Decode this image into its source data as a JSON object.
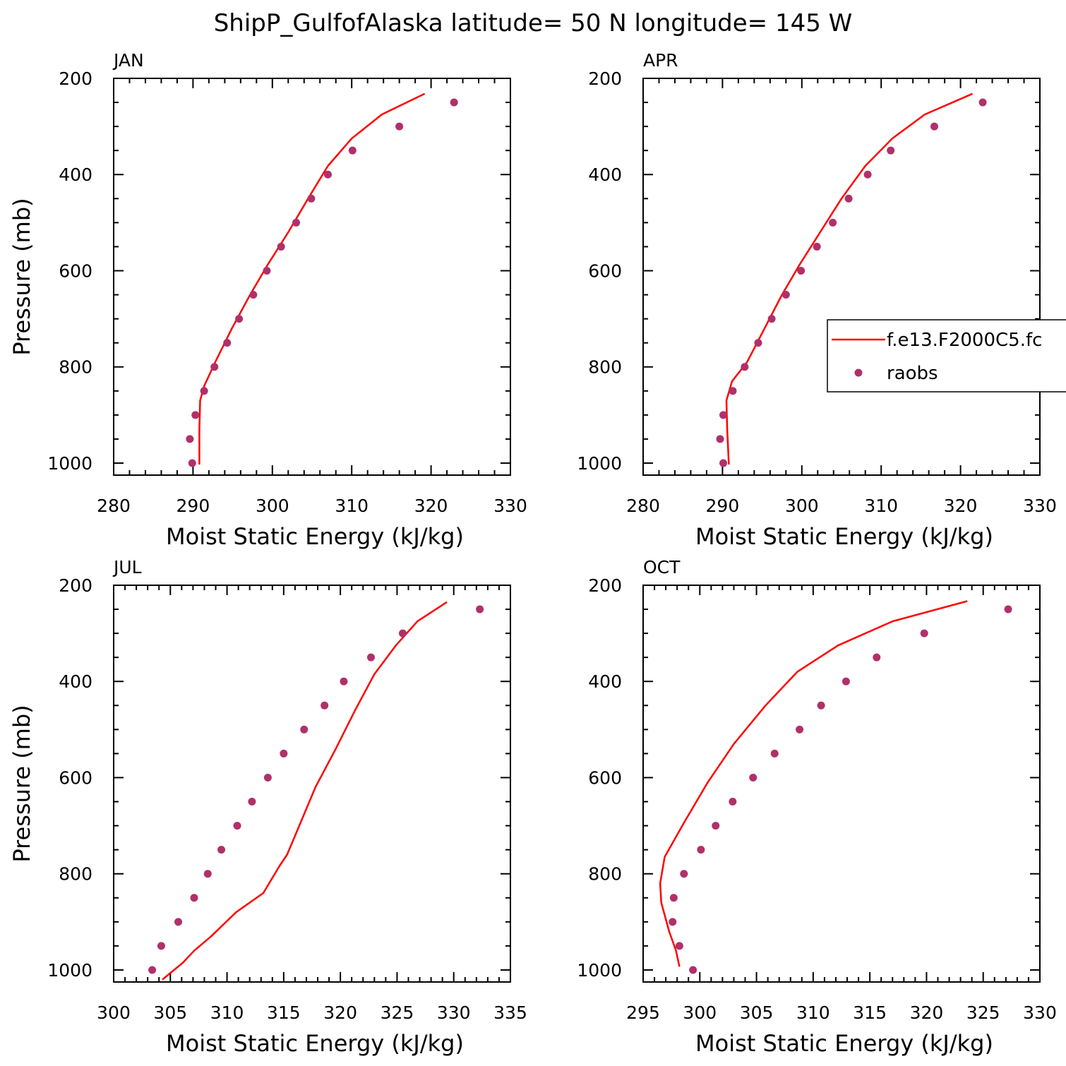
{
  "title": "ShipP_GulfofAlaska  latitude= 50 N longitude= 145 W",
  "colors": {
    "model": "#ff0000",
    "obs": "#b0306a",
    "axis": "#000000"
  },
  "legend": {
    "items": [
      {
        "label": "f.e13.F2000C5.fc",
        "kind": "line"
      },
      {
        "label": "raobs",
        "kind": "marker"
      }
    ]
  },
  "chart_data": [
    {
      "type": "line",
      "panel": "JAN",
      "xlabel": "Moist Static Energy (kJ/kg)",
      "ylabel": "Pressure (mb)",
      "xlim": [
        280,
        330
      ],
      "ylim": [
        1025,
        200
      ],
      "xticks": [
        280,
        290,
        300,
        310,
        320,
        330
      ],
      "yticks": [
        200,
        400,
        600,
        800,
        1000
      ],
      "series": [
        {
          "kind": "line",
          "x": [
            319.2,
            313.8,
            310.0,
            307.0,
            304.5,
            302.0,
            299.5,
            297.2,
            294.9,
            292.8,
            291.4,
            290.9,
            290.8,
            290.8
          ],
          "y": [
            232,
            275,
            325,
            382,
            450,
            520,
            585,
            650,
            720,
            790,
            840,
            870,
            930,
            1003
          ]
        },
        {
          "kind": "scatter",
          "x": [
            322.9,
            316.0,
            310.1,
            307.0,
            304.9,
            303.0,
            301.1,
            299.3,
            297.6,
            295.8,
            294.3,
            292.7,
            291.4,
            290.3,
            289.6,
            289.9
          ],
          "y": [
            250,
            300,
            350,
            400,
            450,
            500,
            550,
            600,
            650,
            700,
            750,
            800,
            850,
            900,
            950,
            1000
          ]
        }
      ]
    },
    {
      "type": "line",
      "panel": "APR",
      "xlabel": "Moist Static Energy (kJ/kg)",
      "ylabel": "",
      "xlim": [
        280,
        330
      ],
      "ylim": [
        1025,
        200
      ],
      "xticks": [
        280,
        290,
        300,
        310,
        320,
        330
      ],
      "yticks": [
        200,
        400,
        600,
        800,
        1000
      ],
      "series": [
        {
          "kind": "line",
          "x": [
            321.5,
            315.5,
            311.4,
            308.0,
            305.0,
            302.3,
            299.8,
            297.5,
            295.3,
            293.1,
            291.2,
            290.5,
            290.6,
            290.8
          ],
          "y": [
            232,
            275,
            325,
            382,
            450,
            520,
            585,
            650,
            720,
            790,
            830,
            870,
            930,
            1003
          ]
        },
        {
          "kind": "scatter",
          "x": [
            322.8,
            316.7,
            311.2,
            308.3,
            305.9,
            303.9,
            301.9,
            299.9,
            298.0,
            296.2,
            294.5,
            292.8,
            291.3,
            290.1,
            289.7,
            290.1
          ],
          "y": [
            250,
            300,
            350,
            400,
            450,
            500,
            550,
            600,
            650,
            700,
            750,
            800,
            850,
            900,
            950,
            1000
          ]
        }
      ]
    },
    {
      "type": "line",
      "panel": "JUL",
      "xlabel": "Moist Static Energy (kJ/kg)",
      "ylabel": "Pressure (mb)",
      "xlim": [
        300,
        335
      ],
      "ylim": [
        1025,
        200
      ],
      "xticks": [
        300,
        305,
        310,
        315,
        320,
        325,
        330,
        335
      ],
      "yticks": [
        200,
        400,
        600,
        800,
        1000
      ],
      "series": [
        {
          "kind": "line",
          "x": [
            329.4,
            326.8,
            324.9,
            323.0,
            321.3,
            319.6,
            317.8,
            316.2,
            315.3,
            314.6,
            313.2,
            310.8,
            308.6,
            307.1,
            306.1,
            304.3
          ],
          "y": [
            235,
            275,
            325,
            385,
            460,
            540,
            620,
            710,
            760,
            785,
            840,
            880,
            930,
            960,
            985,
            1020
          ]
        },
        {
          "kind": "scatter",
          "x": [
            332.3,
            325.5,
            322.7,
            320.3,
            318.6,
            316.8,
            315.0,
            313.6,
            312.2,
            310.9,
            309.5,
            308.3,
            307.1,
            305.7,
            304.2,
            303.4
          ],
          "y": [
            250,
            300,
            350,
            400,
            450,
            500,
            550,
            600,
            650,
            700,
            750,
            800,
            850,
            900,
            950,
            1000
          ]
        }
      ]
    },
    {
      "type": "line",
      "panel": "OCT",
      "xlabel": "Moist Static Energy (kJ/kg)",
      "ylabel": "",
      "xlim": [
        295,
        330
      ],
      "ylim": [
        1025,
        200
      ],
      "xticks": [
        295,
        300,
        305,
        310,
        315,
        320,
        325,
        330
      ],
      "yticks": [
        200,
        400,
        600,
        800,
        1000
      ],
      "series": [
        {
          "kind": "line",
          "x": [
            323.6,
            317.0,
            312.2,
            308.6,
            305.8,
            303.0,
            300.7,
            298.7,
            296.9,
            296.5,
            296.6,
            297.3,
            297.9,
            298.2
          ],
          "y": [
            233,
            275,
            325,
            380,
            450,
            530,
            610,
            690,
            765,
            820,
            860,
            920,
            960,
            993
          ]
        },
        {
          "kind": "scatter",
          "x": [
            327.2,
            319.8,
            315.6,
            312.9,
            310.7,
            308.8,
            306.6,
            304.7,
            302.9,
            301.4,
            300.1,
            298.6,
            297.7,
            297.6,
            298.2,
            299.4
          ],
          "y": [
            250,
            300,
            350,
            400,
            450,
            500,
            550,
            600,
            650,
            700,
            750,
            800,
            850,
            900,
            950,
            1000
          ]
        }
      ]
    }
  ]
}
